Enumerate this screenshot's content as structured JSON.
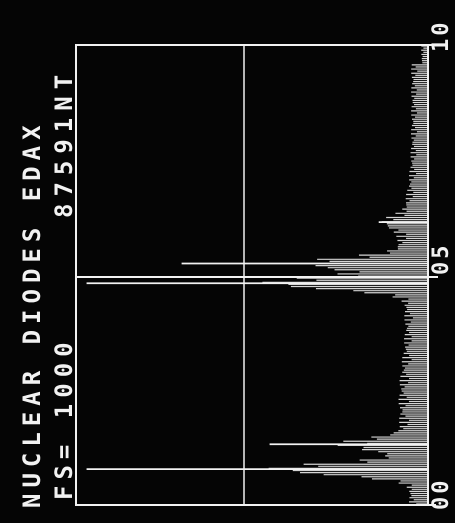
{
  "header": {
    "title": "NUCLEAR DIODES EDAX",
    "full_scale": "FS= 1000",
    "spectrum_id": "87591NT"
  },
  "axis": {
    "ticks": [
      "00",
      "05",
      "10"
    ]
  },
  "chart_data": {
    "type": "bar",
    "title": "NUCLEAR DIODES EDAX",
    "annotation": "FS= 1000",
    "id": "87591NT",
    "full_scale": 1000,
    "xlim": [
      0,
      10
    ],
    "ylim": [
      0,
      1000
    ],
    "x_tick_labels": [
      "00",
      "05",
      "10"
    ],
    "orientation": "rotated-90",
    "grid": true,
    "peaks": [
      {
        "x": 0.78,
        "y": 970
      },
      {
        "x": 1.32,
        "y": 450
      },
      {
        "x": 4.82,
        "y": 970
      },
      {
        "x": 5.25,
        "y": 700
      },
      {
        "x": 6.15,
        "y": 140
      }
    ]
  },
  "colors": {
    "background": "#050505",
    "foreground": "#f2f2f2"
  }
}
